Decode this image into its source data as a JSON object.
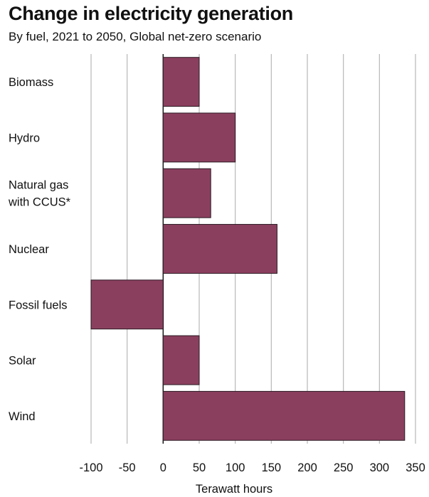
{
  "chart_data": {
    "type": "bar",
    "orientation": "horizontal",
    "title": "Change in electricity generation",
    "subtitle": "By fuel, 2021 to 2050, Global net-zero scenario",
    "categories": [
      [
        "Biomass"
      ],
      [
        "Hydro"
      ],
      [
        "Natural gas",
        "with CCUS*"
      ],
      [
        "Nuclear"
      ],
      [
        "Fossil fuels"
      ],
      [
        "Solar"
      ],
      [
        "Wind"
      ]
    ],
    "values": [
      50,
      100,
      66,
      158,
      -100,
      50,
      335
    ],
    "xlabel": "Terawatt hours",
    "ylabel": "",
    "xlim": [
      -100,
      350
    ],
    "xticks": [
      -100,
      -50,
      0,
      50,
      100,
      150,
      200,
      250,
      300,
      350
    ],
    "grid": true,
    "bar_color": "#8b3f5e",
    "grid_color": "#b8b8b8"
  }
}
